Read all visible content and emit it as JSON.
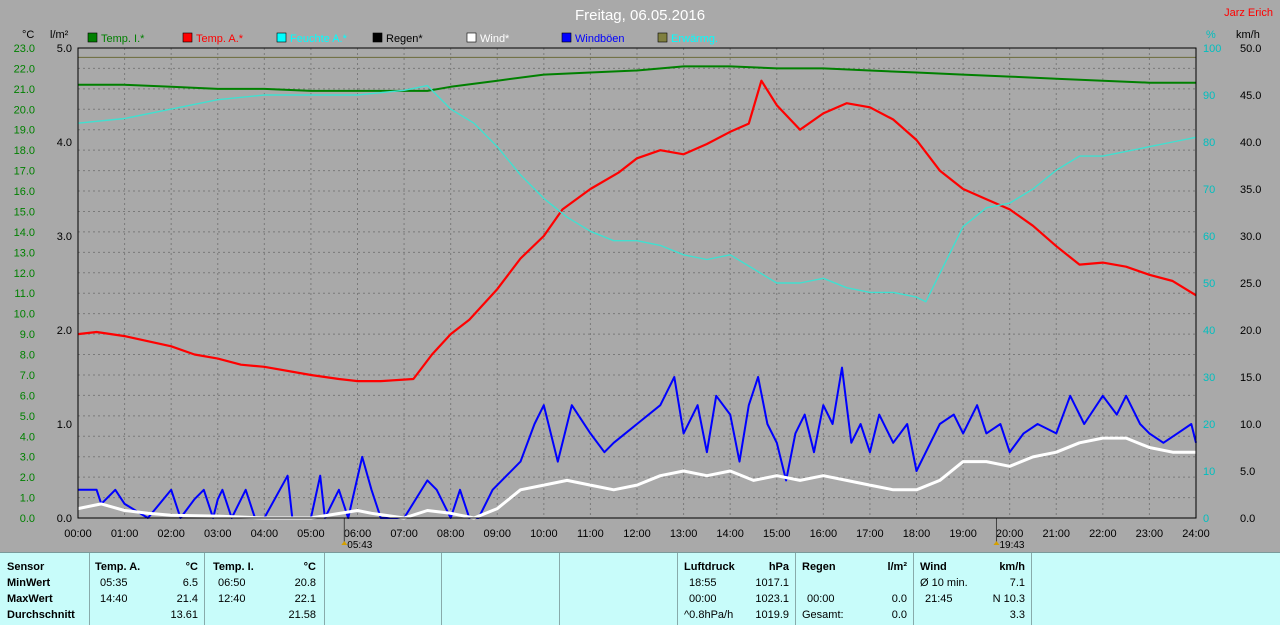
{
  "title": "Freitag, 06.05.2016",
  "author": "Jarz Erich",
  "units": {
    "temp": "°C",
    "rain": "l/m²",
    "humidity": "%",
    "wind": "km/h"
  },
  "legend": [
    {
      "label": "Temp. I.*",
      "color": "#008000"
    },
    {
      "label": "Temp. A.*",
      "color": "#ff0000"
    },
    {
      "label": "Feuchte A.*",
      "color": "#00ffff"
    },
    {
      "label": "Regen*",
      "color": "#000000"
    },
    {
      "label": "Wind*",
      "color": "#ffffff"
    },
    {
      "label": "Windböen",
      "color": "#0000ff"
    },
    {
      "label": "Erwärmg.",
      "color": "#808040"
    }
  ],
  "axes": {
    "temp_ticks": [
      "0.0",
      "1.0",
      "2.0",
      "3.0",
      "4.0",
      "5.0",
      "6.0",
      "7.0",
      "8.0",
      "9.0",
      "10.0",
      "11.0",
      "12.0",
      "13.0",
      "14.0",
      "15.0",
      "16.0",
      "17.0",
      "18.0",
      "19.0",
      "20.0",
      "21.0",
      "22.0",
      "23.0"
    ],
    "rain_ticks": [
      "0.0",
      "1.0",
      "2.0",
      "3.0",
      "4.0",
      "5.0"
    ],
    "humidity_ticks": [
      "0",
      "10",
      "20",
      "30",
      "40",
      "50",
      "60",
      "70",
      "80",
      "90",
      "100"
    ],
    "wind_ticks": [
      "0.0",
      "5.0",
      "10.0",
      "15.0",
      "20.0",
      "25.0",
      "30.0",
      "35.0",
      "40.0",
      "45.0",
      "50.0"
    ],
    "time_ticks": [
      "00:00",
      "01:00",
      "02:00",
      "03:00",
      "04:00",
      "05:00",
      "06:00",
      "07:00",
      "08:00",
      "09:00",
      "10:00",
      "11:00",
      "12:00",
      "13:00",
      "14:00",
      "15:00",
      "16:00",
      "17:00",
      "18:00",
      "19:00",
      "20:00",
      "21:00",
      "22:00",
      "23:00",
      "24:00"
    ],
    "sunrise": "05:43",
    "sunset": "19:43"
  },
  "chart_data": {
    "type": "line",
    "x_unit": "hour",
    "temp_range": [
      0,
      23
    ],
    "wind_range": [
      0,
      50
    ],
    "humidity_range": [
      0,
      100
    ],
    "series": [
      {
        "name": "Temp. I.*",
        "axis": "temp",
        "points": [
          [
            0,
            21.2
          ],
          [
            1,
            21.2
          ],
          [
            2,
            21.1
          ],
          [
            3,
            21.0
          ],
          [
            4,
            21.0
          ],
          [
            5,
            20.9
          ],
          [
            6,
            20.9
          ],
          [
            7,
            20.9
          ],
          [
            7.5,
            20.9
          ],
          [
            8,
            21.1
          ],
          [
            9,
            21.4
          ],
          [
            10,
            21.7
          ],
          [
            11,
            21.8
          ],
          [
            12,
            21.9
          ],
          [
            13,
            22.1
          ],
          [
            14,
            22.1
          ],
          [
            15,
            22.0
          ],
          [
            16,
            22.0
          ],
          [
            17,
            21.9
          ],
          [
            18,
            21.8
          ],
          [
            19,
            21.7
          ],
          [
            20,
            21.6
          ],
          [
            21,
            21.5
          ],
          [
            22,
            21.4
          ],
          [
            23,
            21.3
          ],
          [
            24,
            21.3
          ]
        ]
      },
      {
        "name": "Temp. A.*",
        "axis": "temp",
        "points": [
          [
            0,
            9.0
          ],
          [
            0.4,
            9.1
          ],
          [
            1,
            8.9
          ],
          [
            2,
            8.4
          ],
          [
            2.5,
            8.0
          ],
          [
            3,
            7.8
          ],
          [
            3.5,
            7.5
          ],
          [
            4,
            7.4
          ],
          [
            5,
            7.0
          ],
          [
            5.6,
            6.8
          ],
          [
            6,
            6.7
          ],
          [
            6.5,
            6.7
          ],
          [
            7.2,
            6.8
          ],
          [
            7.6,
            8.0
          ],
          [
            8,
            9.0
          ],
          [
            8.4,
            9.7
          ],
          [
            9,
            11.2
          ],
          [
            9.5,
            12.7
          ],
          [
            10,
            13.8
          ],
          [
            10.4,
            15.1
          ],
          [
            11,
            16.1
          ],
          [
            11.6,
            16.9
          ],
          [
            12,
            17.6
          ],
          [
            12.5,
            18.0
          ],
          [
            13,
            17.8
          ],
          [
            13.5,
            18.3
          ],
          [
            14,
            18.9
          ],
          [
            14.4,
            19.3
          ],
          [
            14.67,
            21.4
          ],
          [
            15,
            20.2
          ],
          [
            15.5,
            19.0
          ],
          [
            16,
            19.8
          ],
          [
            16.5,
            20.3
          ],
          [
            17,
            20.1
          ],
          [
            17.5,
            19.5
          ],
          [
            18,
            18.5
          ],
          [
            18.5,
            17.0
          ],
          [
            19,
            16.1
          ],
          [
            19.5,
            15.6
          ],
          [
            20,
            15.1
          ],
          [
            20.5,
            14.3
          ],
          [
            21,
            13.3
          ],
          [
            21.5,
            12.4
          ],
          [
            22,
            12.5
          ],
          [
            22.5,
            12.3
          ],
          [
            23,
            11.9
          ],
          [
            23.5,
            11.6
          ],
          [
            24,
            10.9
          ]
        ]
      },
      {
        "name": "Feuchte A.*",
        "axis": "humidity",
        "points": [
          [
            0,
            84
          ],
          [
            1,
            85
          ],
          [
            2,
            87
          ],
          [
            3,
            89
          ],
          [
            4,
            90
          ],
          [
            5,
            90
          ],
          [
            6,
            90
          ],
          [
            7,
            91
          ],
          [
            7.5,
            92
          ],
          [
            8,
            87
          ],
          [
            8.5,
            84
          ],
          [
            9,
            79
          ],
          [
            9.5,
            73
          ],
          [
            10,
            68
          ],
          [
            10.5,
            64
          ],
          [
            11,
            61
          ],
          [
            11.5,
            59
          ],
          [
            12,
            59
          ],
          [
            12.5,
            58
          ],
          [
            13,
            56
          ],
          [
            13.5,
            55
          ],
          [
            14,
            56
          ],
          [
            14.5,
            53
          ],
          [
            15,
            50
          ],
          [
            15.5,
            50
          ],
          [
            16,
            51
          ],
          [
            16.5,
            49
          ],
          [
            17,
            48
          ],
          [
            17.5,
            48
          ],
          [
            18,
            47
          ],
          [
            18.2,
            46
          ],
          [
            18.5,
            52
          ],
          [
            19,
            62
          ],
          [
            19.5,
            66
          ],
          [
            20,
            67
          ],
          [
            20.5,
            70
          ],
          [
            21,
            74
          ],
          [
            21.5,
            77
          ],
          [
            22,
            77
          ],
          [
            22.5,
            78
          ],
          [
            23,
            79
          ],
          [
            23.5,
            80
          ],
          [
            24,
            81
          ]
        ]
      },
      {
        "name": "Windböen",
        "axis": "wind",
        "points": [
          [
            0,
            3
          ],
          [
            0.4,
            3
          ],
          [
            0.5,
            1.5
          ],
          [
            0.8,
            3
          ],
          [
            1,
            1.5
          ],
          [
            1.5,
            0
          ],
          [
            2,
            3
          ],
          [
            2.2,
            0
          ],
          [
            2.5,
            2
          ],
          [
            2.7,
            3
          ],
          [
            2.9,
            0
          ],
          [
            3,
            2
          ],
          [
            3.1,
            3
          ],
          [
            3.3,
            0
          ],
          [
            3.6,
            3
          ],
          [
            3.8,
            0
          ],
          [
            4,
            0
          ],
          [
            4.5,
            4.5
          ],
          [
            4.6,
            0
          ],
          [
            5,
            0
          ],
          [
            5.2,
            4.5
          ],
          [
            5.3,
            0
          ],
          [
            5.6,
            3
          ],
          [
            5.8,
            0
          ],
          [
            6.1,
            6.5
          ],
          [
            6.3,
            3
          ],
          [
            6.5,
            0
          ],
          [
            7,
            0
          ],
          [
            7.5,
            4
          ],
          [
            7.7,
            3
          ],
          [
            8,
            0
          ],
          [
            8.2,
            3
          ],
          [
            8.4,
            0
          ],
          [
            8.6,
            0
          ],
          [
            8.9,
            3
          ],
          [
            9.5,
            6
          ],
          [
            9.8,
            10
          ],
          [
            10,
            12
          ],
          [
            10.3,
            6
          ],
          [
            10.6,
            12
          ],
          [
            11,
            9
          ],
          [
            11.3,
            7
          ],
          [
            11.5,
            8
          ],
          [
            12,
            10
          ],
          [
            12.5,
            12
          ],
          [
            12.8,
            15
          ],
          [
            13,
            9
          ],
          [
            13.3,
            12
          ],
          [
            13.5,
            7
          ],
          [
            13.7,
            13
          ],
          [
            14,
            11
          ],
          [
            14.2,
            6
          ],
          [
            14.4,
            12
          ],
          [
            14.6,
            15
          ],
          [
            14.8,
            10
          ],
          [
            15,
            8
          ],
          [
            15.2,
            4
          ],
          [
            15.4,
            9
          ],
          [
            15.6,
            11
          ],
          [
            15.8,
            7
          ],
          [
            16,
            12
          ],
          [
            16.2,
            10
          ],
          [
            16.4,
            16
          ],
          [
            16.6,
            8
          ],
          [
            16.8,
            10
          ],
          [
            17,
            7
          ],
          [
            17.2,
            11
          ],
          [
            17.5,
            8
          ],
          [
            17.8,
            10
          ],
          [
            18,
            5
          ],
          [
            18.2,
            7
          ],
          [
            18.5,
            10
          ],
          [
            18.8,
            11
          ],
          [
            19,
            9
          ],
          [
            19.3,
            12
          ],
          [
            19.5,
            9
          ],
          [
            19.8,
            10
          ],
          [
            20,
            7
          ],
          [
            20.3,
            9
          ],
          [
            20.6,
            10
          ],
          [
            21,
            9
          ],
          [
            21.3,
            13
          ],
          [
            21.6,
            10
          ],
          [
            22,
            13
          ],
          [
            22.3,
            11
          ],
          [
            22.5,
            13
          ],
          [
            22.8,
            10
          ],
          [
            23,
            9
          ],
          [
            23.3,
            8
          ],
          [
            23.6,
            9
          ],
          [
            23.9,
            10
          ],
          [
            24,
            8
          ]
        ]
      },
      {
        "name": "Wind*",
        "axis": "wind",
        "points": [
          [
            0,
            1
          ],
          [
            0.5,
            1.5
          ],
          [
            1,
            0.8
          ],
          [
            1.5,
            0.5
          ],
          [
            2,
            0.3
          ],
          [
            3,
            0.2
          ],
          [
            4,
            0
          ],
          [
            5,
            0
          ],
          [
            6,
            0.8
          ],
          [
            6.3,
            0.5
          ],
          [
            7,
            0
          ],
          [
            7.5,
            0.8
          ],
          [
            8,
            0.5
          ],
          [
            8.5,
            0
          ],
          [
            9,
            1
          ],
          [
            9.5,
            3
          ],
          [
            10,
            3.5
          ],
          [
            10.5,
            4
          ],
          [
            11,
            3.5
          ],
          [
            11.5,
            3
          ],
          [
            12,
            3.5
          ],
          [
            12.5,
            4.5
          ],
          [
            13,
            5
          ],
          [
            13.5,
            4.5
          ],
          [
            14,
            5
          ],
          [
            14.5,
            4
          ],
          [
            15,
            4.5
          ],
          [
            15.5,
            4
          ],
          [
            16,
            4.5
          ],
          [
            16.5,
            4
          ],
          [
            17,
            3.5
          ],
          [
            17.5,
            3
          ],
          [
            18,
            3
          ],
          [
            18.5,
            4
          ],
          [
            19,
            6
          ],
          [
            19.5,
            6
          ],
          [
            20,
            5.5
          ],
          [
            20.5,
            6.5
          ],
          [
            21,
            7
          ],
          [
            21.5,
            8
          ],
          [
            22,
            8.5
          ],
          [
            22.5,
            8.5
          ],
          [
            23,
            7.5
          ],
          [
            23.5,
            7
          ],
          [
            24,
            7
          ]
        ]
      },
      {
        "name": "Erwärmg.",
        "axis": "rain",
        "points": [
          [
            0,
            4.9
          ],
          [
            6,
            4.9
          ],
          [
            12,
            4.9
          ],
          [
            18,
            4.9
          ],
          [
            24,
            4.9
          ]
        ]
      }
    ]
  },
  "footer": {
    "sensor_label": "Sensor",
    "row_labels": [
      "MinWert",
      "MaxWert",
      "Durchschnitt"
    ],
    "temp_a": {
      "header": "Temp. A.",
      "unit": "°C",
      "rows": [
        [
          "05:35",
          "6.5"
        ],
        [
          "14:40",
          "21.4"
        ],
        [
          "",
          "13.61"
        ]
      ]
    },
    "temp_i": {
      "header": "Temp. I.",
      "unit": "°C",
      "rows": [
        [
          "06:50",
          "20.8"
        ],
        [
          "12:40",
          "22.1"
        ],
        [
          "",
          "21.58"
        ]
      ]
    },
    "pressure": {
      "header": "Luftdruck",
      "unit": "hPa",
      "rows": [
        [
          "18:55",
          "1017.1"
        ],
        [
          "00:00",
          "1023.1"
        ],
        [
          "^0.8hPa/h",
          "1019.9"
        ]
      ]
    },
    "rain": {
      "header": "Regen",
      "unit": "l/m²",
      "rows": [
        [
          "",
          ""
        ],
        [
          "00:00",
          "0.0"
        ],
        [
          "Gesamt:",
          "0.0"
        ]
      ]
    },
    "wind": {
      "header": "Wind",
      "unit": "km/h",
      "rows": [
        [
          "Ø 10 min.",
          "7.1"
        ],
        [
          "21:45",
          "N 10.3"
        ],
        [
          "",
          "3.3"
        ]
      ]
    }
  }
}
